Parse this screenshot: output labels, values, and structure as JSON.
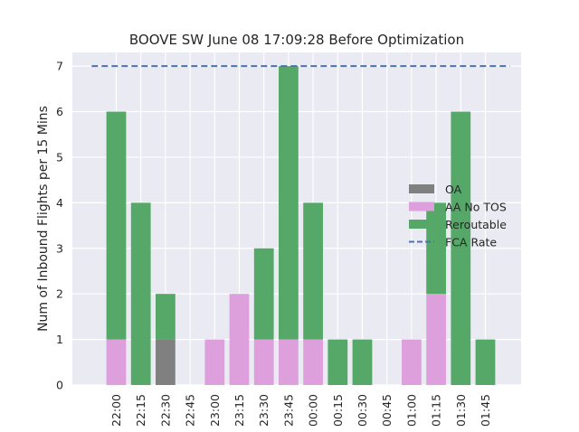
{
  "chart_data": {
    "type": "bar",
    "stacked": true,
    "title": "BOOVE SW June 08 17:09:28 Before Optimization",
    "xlabel": "",
    "ylabel": "Num of Inbound Flights per 15 Mins",
    "ylim": [
      0,
      7.3
    ],
    "yticks": [
      "0",
      "1",
      "2",
      "3",
      "4",
      "5",
      "6",
      "7"
    ],
    "categories": [
      "22:00",
      "22:15",
      "22:30",
      "22:45",
      "23:00",
      "23:15",
      "23:30",
      "23:45",
      "00:00",
      "00:15",
      "00:30",
      "00:45",
      "01:00",
      "01:15",
      "01:30",
      "01:45"
    ],
    "series": [
      {
        "name": "OA",
        "color": "#808080",
        "values": [
          0,
          0,
          1,
          0,
          0,
          0,
          0,
          0,
          0,
          0,
          0,
          0,
          0,
          0,
          0,
          0
        ]
      },
      {
        "name": "AA No TOS",
        "color": "#dda0dd",
        "values": [
          1,
          0,
          0,
          0,
          1,
          2,
          1,
          1,
          1,
          0,
          0,
          0,
          1,
          2,
          0,
          0
        ]
      },
      {
        "name": "Reroutable",
        "color": "#55a868",
        "values": [
          5,
          4,
          1,
          0,
          0,
          0,
          2,
          6,
          3,
          1,
          1,
          0,
          0,
          2,
          6,
          1
        ]
      }
    ],
    "reference_line": {
      "name": "FCA Rate",
      "color": "#4c72b0",
      "value": 7,
      "style": "dashed"
    },
    "grid": true,
    "legend_position": "center-right"
  }
}
